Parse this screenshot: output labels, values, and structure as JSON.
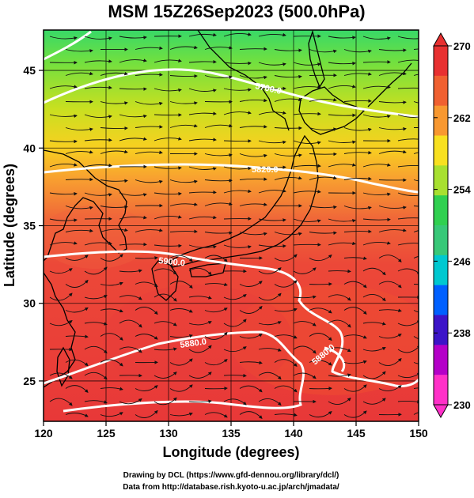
{
  "title": "MSM 15Z26Sep2023 (500.0hPa)",
  "x_axis": {
    "label": "Longitude (degrees)",
    "ticks": [
      "120",
      "125",
      "130",
      "135",
      "140",
      "145",
      "150"
    ],
    "range": [
      120,
      150
    ]
  },
  "y_axis": {
    "label": "Latitude  (degrees)",
    "ticks": [
      "25",
      "30",
      "35",
      "40",
      "45"
    ],
    "range": [
      22.4,
      47.6
    ]
  },
  "colorbar": {
    "ticks": [
      "270",
      "262",
      "254",
      "246",
      "238",
      "230"
    ],
    "range": [
      230,
      270
    ],
    "colors": [
      "#ff30c8",
      "#b400c8",
      "#3c14c8",
      "#0060ff",
      "#00c8d0",
      "#38c878",
      "#30d050",
      "#a8e030",
      "#f8e020",
      "#f89830",
      "#f06030",
      "#e83030"
    ]
  },
  "contours": [
    {
      "label": "5700.0",
      "lat_hint": 45.5
    },
    {
      "label": "5820.0",
      "lat_hint": 39.5
    },
    {
      "label": "5900.0",
      "lat_hint": 34.0
    },
    {
      "label": "5880.0",
      "lat_hint": 27.5
    },
    {
      "label": "5880.0",
      "lat_hint": 25.5
    }
  ],
  "credits": {
    "line1": "Drawing by DCL (https://www.gfd-dennou.org/library/dcl/)",
    "line2": "Data from http://database.rish.kyoto-u.ac.jp/arch/jmadata/"
  }
}
